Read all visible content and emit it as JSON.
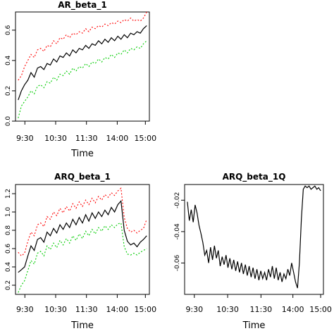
{
  "chart_data": [
    {
      "type": "line",
      "title": "AR_beta_1",
      "xlabel": "Time",
      "ylabel": "",
      "xticks": [
        "9:30",
        "10:30",
        "11:30",
        "14:00",
        "15:00"
      ],
      "yticks": [
        "0.0",
        "0.2",
        "0.4",
        "0.6"
      ],
      "xlim": [
        0,
        40
      ],
      "ylim": [
        0,
        0.72
      ],
      "grid": false,
      "series": [
        {
          "role": "estimate",
          "color": "#000000",
          "dash": "solid",
          "y": [
            0.14,
            0.2,
            0.24,
            0.27,
            0.32,
            0.29,
            0.35,
            0.36,
            0.34,
            0.38,
            0.37,
            0.41,
            0.39,
            0.43,
            0.42,
            0.45,
            0.43,
            0.47,
            0.45,
            0.48,
            0.47,
            0.5,
            0.48,
            0.51,
            0.5,
            0.53,
            0.51,
            0.54,
            0.52,
            0.55,
            0.53,
            0.56,
            0.54,
            0.57,
            0.55,
            0.58,
            0.57,
            0.59,
            0.58,
            0.61,
            0.63
          ]
        },
        {
          "role": "upper",
          "color": "#ff0000",
          "dash": "dotted",
          "y": [
            0.27,
            0.3,
            0.36,
            0.4,
            0.44,
            0.42,
            0.47,
            0.48,
            0.46,
            0.5,
            0.49,
            0.53,
            0.51,
            0.55,
            0.54,
            0.57,
            0.55,
            0.58,
            0.57,
            0.59,
            0.58,
            0.61,
            0.59,
            0.62,
            0.61,
            0.63,
            0.62,
            0.64,
            0.63,
            0.65,
            0.64,
            0.66,
            0.65,
            0.67,
            0.66,
            0.68,
            0.66,
            0.67,
            0.66,
            0.68,
            0.72
          ]
        },
        {
          "role": "lower",
          "color": "#00cc00",
          "dash": "dotted",
          "y": [
            0.02,
            0.1,
            0.13,
            0.16,
            0.2,
            0.18,
            0.23,
            0.24,
            0.22,
            0.26,
            0.25,
            0.29,
            0.27,
            0.31,
            0.3,
            0.33,
            0.31,
            0.35,
            0.33,
            0.36,
            0.35,
            0.38,
            0.36,
            0.39,
            0.38,
            0.41,
            0.39,
            0.42,
            0.41,
            0.44,
            0.42,
            0.45,
            0.44,
            0.47,
            0.45,
            0.48,
            0.47,
            0.49,
            0.48,
            0.51,
            0.53
          ]
        }
      ]
    },
    {
      "type": "line",
      "title": "ARQ_beta_1",
      "xlabel": "Time",
      "ylabel": "",
      "xticks": [
        "9:30",
        "10:30",
        "11:30",
        "14:00",
        "15:00"
      ],
      "yticks": [
        "0.2",
        "0.4",
        "0.6",
        "0.8",
        "1.0",
        "1.2"
      ],
      "xlim": [
        0,
        40
      ],
      "ylim": [
        0.1,
        1.3
      ],
      "grid": false,
      "series": [
        {
          "role": "estimate",
          "color": "#000000",
          "dash": "solid",
          "y": [
            0.34,
            0.37,
            0.4,
            0.52,
            0.63,
            0.58,
            0.7,
            0.72,
            0.67,
            0.78,
            0.74,
            0.82,
            0.77,
            0.86,
            0.81,
            0.88,
            0.83,
            0.92,
            0.86,
            0.94,
            0.88,
            0.97,
            0.9,
            0.99,
            0.93,
            1.0,
            0.95,
            1.02,
            0.97,
            1.05,
            1.0,
            1.08,
            1.12,
            0.8,
            0.68,
            0.64,
            0.66,
            0.62,
            0.67,
            0.7,
            0.74
          ]
        },
        {
          "role": "upper",
          "color": "#ff0000",
          "dash": "dotted",
          "y": [
            0.56,
            0.52,
            0.55,
            0.68,
            0.78,
            0.74,
            0.86,
            0.88,
            0.84,
            0.95,
            0.92,
            1.0,
            0.96,
            1.04,
            0.99,
            1.06,
            1.01,
            1.09,
            1.04,
            1.11,
            1.06,
            1.13,
            1.08,
            1.15,
            1.1,
            1.17,
            1.13,
            1.19,
            1.16,
            1.21,
            1.18,
            1.23,
            1.26,
            0.94,
            0.82,
            0.78,
            0.8,
            0.77,
            0.8,
            0.82,
            0.92
          ]
        },
        {
          "role": "lower",
          "color": "#00cc00",
          "dash": "dotted",
          "y": [
            0.12,
            0.2,
            0.25,
            0.36,
            0.47,
            0.43,
            0.55,
            0.57,
            0.52,
            0.63,
            0.59,
            0.66,
            0.61,
            0.69,
            0.64,
            0.71,
            0.66,
            0.74,
            0.69,
            0.76,
            0.71,
            0.79,
            0.74,
            0.81,
            0.76,
            0.83,
            0.79,
            0.85,
            0.81,
            0.86,
            0.83,
            0.87,
            0.88,
            0.62,
            0.54,
            0.53,
            0.55,
            0.53,
            0.56,
            0.58,
            0.6
          ]
        }
      ]
    },
    {
      "type": "line",
      "title": "ARQ_beta_1Q",
      "xlabel": "Time",
      "ylabel": "",
      "xticks": [
        "9:30",
        "10:30",
        "11:30",
        "14:00",
        "15:00"
      ],
      "yticks": [
        "-0.06",
        "-0.04",
        "-0.02"
      ],
      "xlim": [
        0,
        100
      ],
      "ylim": [
        -0.08,
        -0.01
      ],
      "grid": false,
      "series": [
        {
          "role": "estimate",
          "color": "#000000",
          "dash": "solid",
          "y": [
            -0.021,
            -0.033,
            -0.026,
            -0.034,
            -0.023,
            -0.028,
            -0.036,
            -0.041,
            -0.047,
            -0.055,
            -0.052,
            -0.06,
            -0.05,
            -0.058,
            -0.049,
            -0.057,
            -0.052,
            -0.062,
            -0.056,
            -0.061,
            -0.055,
            -0.063,
            -0.057,
            -0.064,
            -0.058,
            -0.065,
            -0.059,
            -0.066,
            -0.06,
            -0.067,
            -0.061,
            -0.068,
            -0.062,
            -0.069,
            -0.063,
            -0.07,
            -0.064,
            -0.071,
            -0.065,
            -0.07,
            -0.066,
            -0.071,
            -0.064,
            -0.069,
            -0.062,
            -0.07,
            -0.063,
            -0.071,
            -0.066,
            -0.072,
            -0.067,
            -0.07,
            -0.064,
            -0.068,
            -0.06,
            -0.066,
            -0.072,
            -0.076,
            -0.06,
            -0.032,
            -0.013,
            -0.011,
            -0.012,
            -0.011,
            -0.013,
            -0.012,
            -0.011,
            -0.013,
            -0.012,
            -0.014
          ]
        }
      ]
    }
  ]
}
